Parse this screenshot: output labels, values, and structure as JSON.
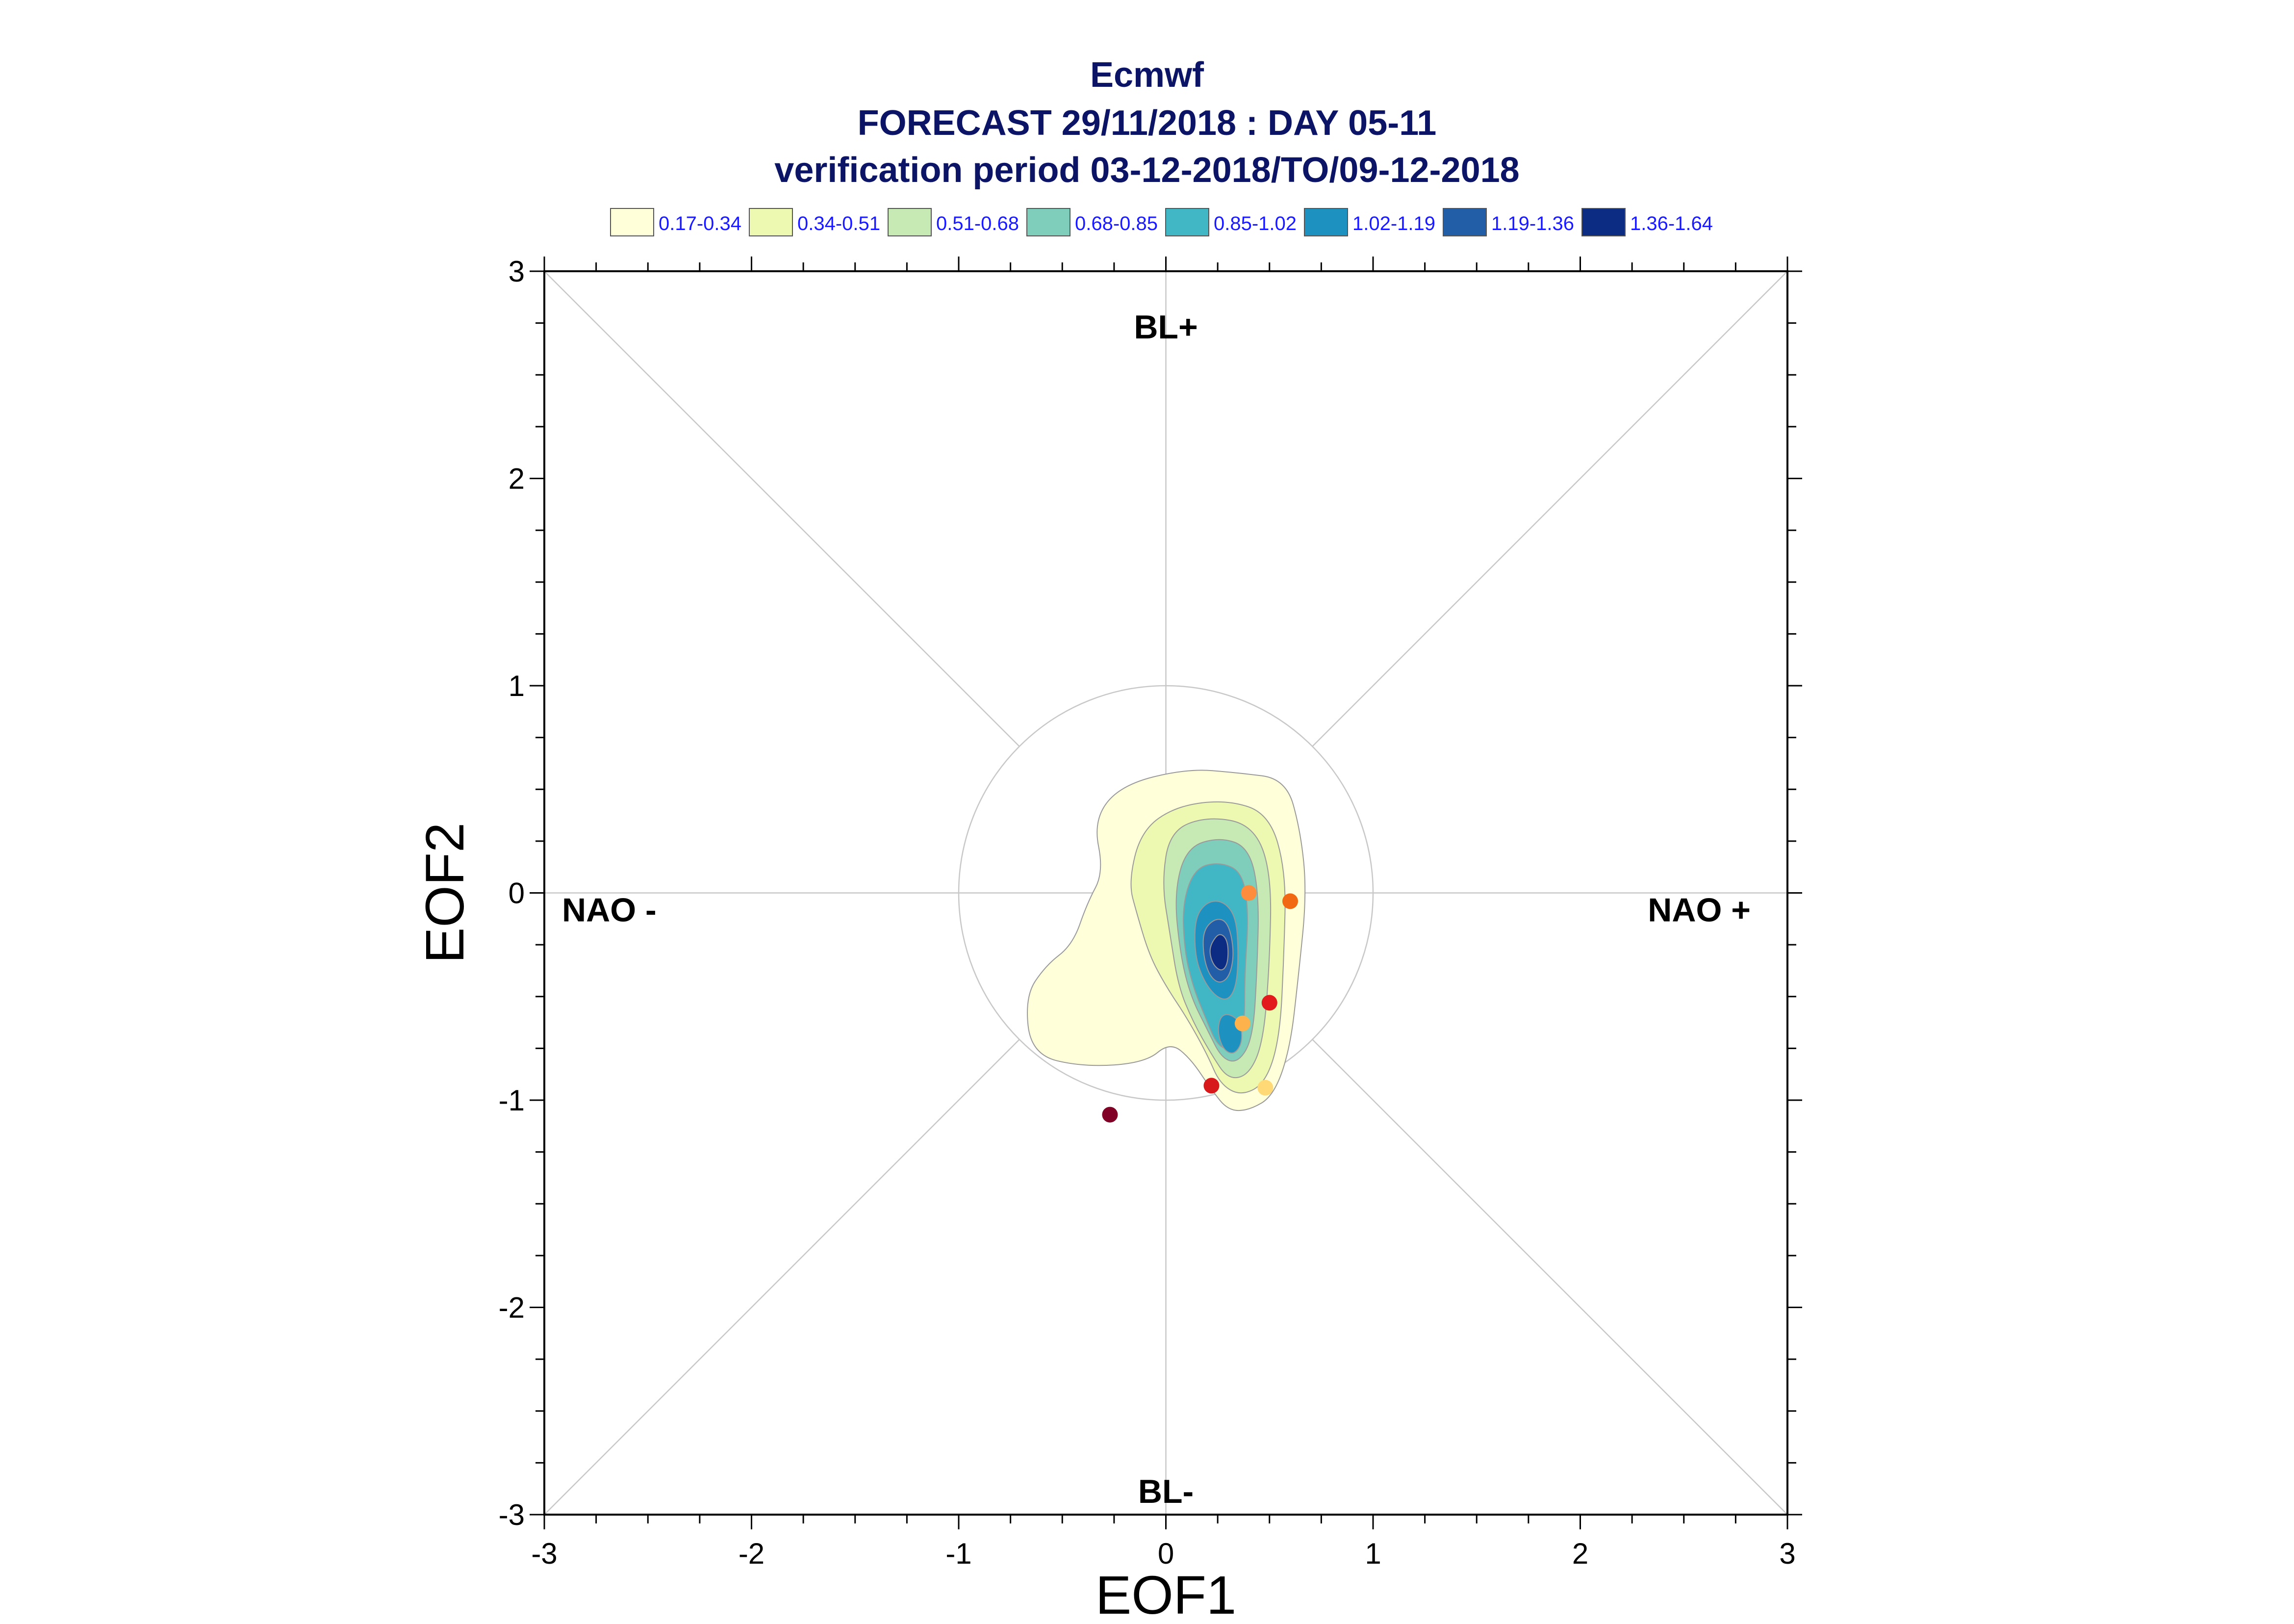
{
  "titles": {
    "line1": "Ecmwf",
    "line2": "FORECAST 29/11/2018 : DAY 05-11",
    "line3": "verification period 03-12-2018/TO/09-12-2018"
  },
  "legend": [
    {
      "label": "0.17-0.34",
      "color": "#ffffd9"
    },
    {
      "label": "0.34-0.51",
      "color": "#edf8b1"
    },
    {
      "label": "0.51-0.68",
      "color": "#c7e9b4"
    },
    {
      "label": "0.68-0.85",
      "color": "#7fcdbb"
    },
    {
      "label": "0.85-1.02",
      "color": "#41b6c4"
    },
    {
      "label": "1.02-1.19",
      "color": "#1d91c0"
    },
    {
      "label": "1.19-1.36",
      "color": "#225ea8"
    },
    {
      "label": "1.36-1.64",
      "color": "#0c2c84"
    }
  ],
  "regimes": {
    "top": "BL+",
    "bottom": "BL-",
    "left": "NAO -",
    "right": "NAO +"
  },
  "chart_data": {
    "type": "scatter",
    "xlabel": "EOF1",
    "ylabel": "EOF2",
    "xlim": [
      -3,
      3
    ],
    "ylim": [
      -3,
      3
    ],
    "xticks": [
      "-3",
      "-2",
      "-1",
      "0",
      "1",
      "2",
      "3"
    ],
    "yticks": [
      "-3",
      "-2",
      "-1",
      "0",
      "1",
      "2",
      "3"
    ],
    "unit_circle_radius": 1,
    "points": [
      {
        "x": 0.4,
        "y": 0.0,
        "color": "#fd8d3c"
      },
      {
        "x": 0.6,
        "y": -0.04,
        "color": "#f16913"
      },
      {
        "x": 0.5,
        "y": -0.53,
        "color": "#e31a1c"
      },
      {
        "x": 0.37,
        "y": -0.63,
        "color": "#feb24c"
      },
      {
        "x": 0.22,
        "y": -0.93,
        "color": "#d7191c"
      },
      {
        "x": 0.48,
        "y": -0.94,
        "color": "#fed976"
      },
      {
        "x": -0.27,
        "y": -1.07,
        "color": "#800026"
      }
    ]
  }
}
